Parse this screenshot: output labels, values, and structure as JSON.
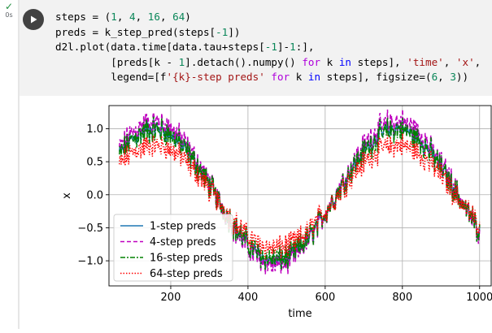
{
  "cell": {
    "status_icon": "check-icon",
    "exec_time": "0s",
    "code_lines": [
      [
        {
          "t": "steps = ("
        },
        {
          "t": "1",
          "c": "t-num"
        },
        {
          "t": ", "
        },
        {
          "t": "4",
          "c": "t-num"
        },
        {
          "t": ", "
        },
        {
          "t": "16",
          "c": "t-num"
        },
        {
          "t": ", "
        },
        {
          "t": "64",
          "c": "t-num"
        },
        {
          "t": ")"
        }
      ],
      [
        {
          "t": "preds = k_step_pred(steps["
        },
        {
          "t": "-1",
          "c": "t-num"
        },
        {
          "t": "])"
        }
      ],
      [
        {
          "t": "d2l.plot(data.time[data.tau+steps["
        },
        {
          "t": "-1",
          "c": "t-num"
        },
        {
          "t": "]-"
        },
        {
          "t": "1",
          "c": "t-num"
        },
        {
          "t": ":],"
        }
      ],
      [
        {
          "t": "         [preds[k - "
        },
        {
          "t": "1",
          "c": "t-num"
        },
        {
          "t": "].detach().numpy() "
        },
        {
          "t": "for",
          "c": "t-kw"
        },
        {
          "t": " k "
        },
        {
          "t": "in",
          "c": "t-kw2"
        },
        {
          "t": " steps], "
        },
        {
          "t": "'time'",
          "c": "t-str"
        },
        {
          "t": ", "
        },
        {
          "t": "'x'",
          "c": "t-str"
        },
        {
          "t": ","
        }
      ],
      [
        {
          "t": "         legend=[f"
        },
        {
          "t": "'{k}-step preds'",
          "c": "t-str"
        },
        {
          "t": " "
        },
        {
          "t": "for",
          "c": "t-kw"
        },
        {
          "t": " k "
        },
        {
          "t": "in",
          "c": "t-kw2"
        },
        {
          "t": " steps], figsize=("
        },
        {
          "t": "6",
          "c": "t-num"
        },
        {
          "t": ", "
        },
        {
          "t": "3",
          "c": "t-num"
        },
        {
          "t": "))"
        }
      ]
    ]
  },
  "chart_data": {
    "type": "line",
    "xlabel": "time",
    "ylabel": "x",
    "xlim": [
      40,
      1030
    ],
    "ylim": [
      -1.38,
      1.35
    ],
    "xticks": [
      200,
      400,
      600,
      800,
      1000
    ],
    "xtick_labels": [
      "200",
      "400",
      "600",
      "800",
      "1000"
    ],
    "yticks": [
      -1.0,
      -0.5,
      0.0,
      0.5,
      1.0
    ],
    "ytick_labels": [
      "−1.0",
      "−0.5",
      "0.0",
      "0.5",
      "1.0"
    ],
    "grid": true,
    "legend_position": "lower-left",
    "x_range": [
      67,
      1000
    ],
    "series": [
      {
        "name": "1-step preds",
        "color": "#1f77b4",
        "dash": "",
        "scale": 1.0,
        "offset": 0.0
      },
      {
        "name": "4-step preds",
        "color": "#bf00bf",
        "dash": "5,3",
        "scale": 1.08,
        "offset": 0.02
      },
      {
        "name": "16-step preds",
        "color": "#008000",
        "dash": "6,2,2,2",
        "scale": 0.98,
        "offset": 0.0
      },
      {
        "name": "64-step preds",
        "color": "#ff0000",
        "dash": "1.5,2",
        "scale": 0.78,
        "offset": -0.03
      }
    ]
  }
}
